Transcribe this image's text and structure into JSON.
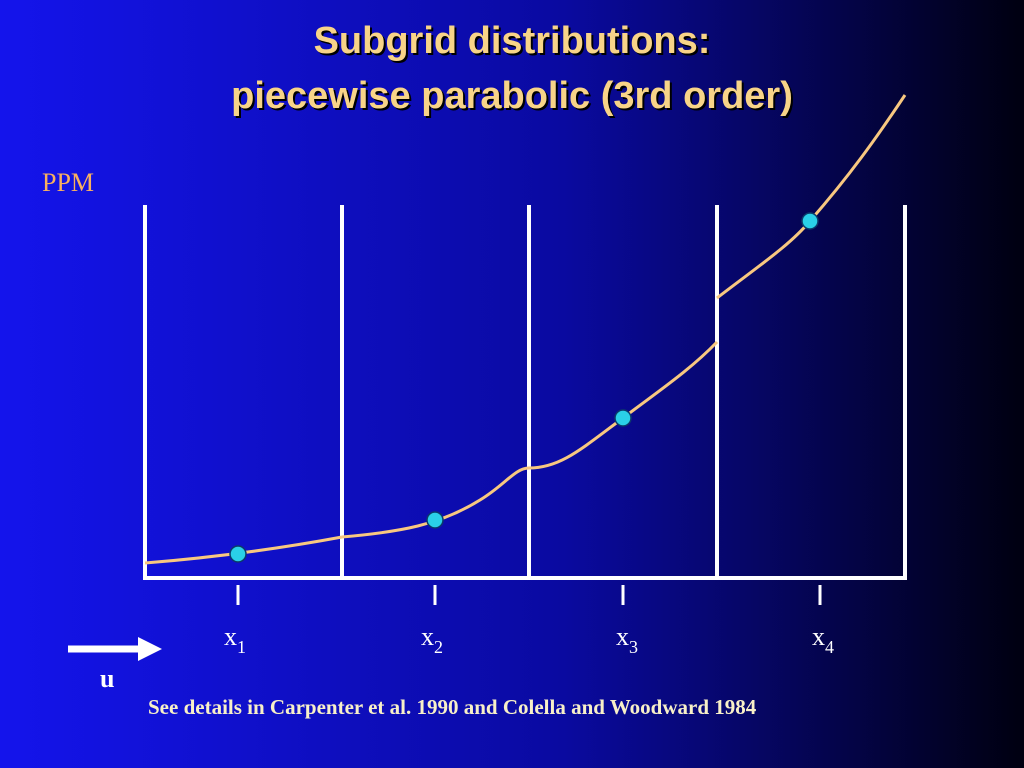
{
  "title": [
    "Subgrid distributions:",
    "piecewise parabolic (3rd order)"
  ],
  "method_label": "PPM",
  "points": [
    {
      "label": "x",
      "subscript": "1"
    },
    {
      "label": "x",
      "subscript": "2"
    },
    {
      "label": "x",
      "subscript": "3"
    },
    {
      "label": "x",
      "subscript": "4"
    }
  ],
  "flow_label": "u",
  "footnote": "See details in Carpenter et al. 1990 and Colella and Woodward 1984"
}
